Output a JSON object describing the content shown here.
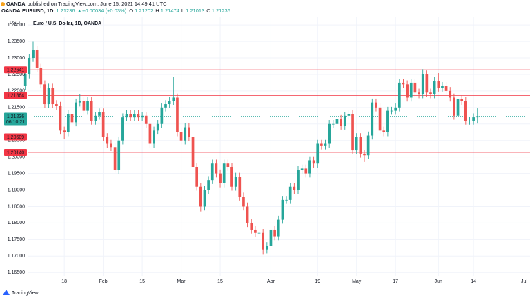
{
  "header": {
    "publisher": "OANDA",
    "published": "published on TradingView.com, June 15, 2021 14:49:41 UTC",
    "symbol": "OANDA:EURUSD, 1D",
    "last": "1.21236",
    "change": "▲+0.00034 (+0.03%)",
    "ohlc": [
      {
        "label": "O:",
        "value": "1.21202"
      },
      {
        "label": "H:",
        "value": "1.21474"
      },
      {
        "label": "L:",
        "value": "1.21013"
      },
      {
        "label": "C:",
        "value": "1.21236"
      }
    ]
  },
  "footer": "TradingView",
  "chart_data": {
    "type": "candlestick",
    "title": "Euro / U.S. Dollar, 1D, OANDA",
    "y_unit": "USD",
    "up_color": "#26a69a",
    "down_color": "#ef5350",
    "grid": true,
    "xlim": [
      -6.5,
      129.5
    ],
    "ylim": [
      1.164,
      1.2417
    ],
    "xticks": [
      {
        "value": 10,
        "label": "18"
      },
      {
        "value": 20,
        "label": "Feb"
      },
      {
        "value": 30,
        "label": "15"
      },
      {
        "value": 40,
        "label": "Mar"
      },
      {
        "value": 50,
        "label": "15"
      },
      {
        "value": 63,
        "label": "Apr"
      },
      {
        "value": 75,
        "label": "19"
      },
      {
        "value": 85,
        "label": "May"
      },
      {
        "value": 95,
        "label": "17"
      },
      {
        "value": 106,
        "label": "Jun"
      },
      {
        "value": 115,
        "label": "14"
      },
      {
        "value": 128,
        "label": "Jul"
      }
    ],
    "yticks": [
      {
        "value": 1.165,
        "label": "1.16500"
      },
      {
        "value": 1.17,
        "label": "1.17000"
      },
      {
        "value": 1.175,
        "label": "1.17500"
      },
      {
        "value": 1.18,
        "label": "1.18000"
      },
      {
        "value": 1.185,
        "label": "1.18500"
      },
      {
        "value": 1.19,
        "label": "1.19000"
      },
      {
        "value": 1.195,
        "label": "1.19500"
      },
      {
        "value": 1.2,
        "label": "1.20000"
      },
      {
        "value": 1.205,
        "label": "1.20500"
      },
      {
        "value": 1.21,
        "label": "1.21000"
      },
      {
        "value": 1.215,
        "label": "1.21500"
      },
      {
        "value": 1.22,
        "label": "1.22000"
      },
      {
        "value": 1.225,
        "label": "1.22500"
      },
      {
        "value": 1.23,
        "label": "1.23000"
      },
      {
        "value": 1.235,
        "label": "1.23500"
      },
      {
        "value": 1.24,
        "label": "1.24000"
      }
    ],
    "levels": [
      {
        "value": 1.22641,
        "label": "1.22641"
      },
      {
        "value": 1.21864,
        "label": "1.21864"
      },
      {
        "value": 1.20609,
        "label": "1.20609"
      },
      {
        "value": 1.2014,
        "label": "1.20140"
      }
    ],
    "level_color": "#f23645",
    "current": {
      "value": 1.21236,
      "label": "1.21236",
      "countdown": "06:10:21"
    },
    "open": [
      1.2215,
      1.225,
      1.23,
      1.2325,
      1.227,
      1.222,
      1.216,
      1.221,
      1.216,
      1.2155,
      1.208,
      1.2075,
      1.213,
      1.2105,
      1.2165,
      1.217,
      1.214,
      1.217,
      1.211,
      1.2125,
      1.2135,
      1.206,
      1.204,
      1.203,
      1.196,
      1.205,
      1.212,
      1.213,
      1.212,
      1.213,
      1.212,
      1.2125,
      1.21,
      1.204,
      1.208,
      1.21,
      1.215,
      1.216,
      1.217,
      1.218,
      1.2075,
      1.205,
      1.209,
      1.206,
      1.197,
      1.191,
      1.185,
      1.19,
      1.193,
      1.198,
      1.195,
      1.192,
      1.198,
      1.197,
      1.191,
      1.194,
      1.188,
      1.185,
      1.18,
      1.178,
      1.177,
      1.177,
      1.172,
      1.173,
      1.178,
      1.176,
      1.181,
      1.187,
      1.187,
      1.191,
      1.19,
      1.196,
      1.1965,
      1.195,
      1.199,
      1.198,
      1.204,
      1.2035,
      1.204,
      1.21,
      1.21,
      1.2115,
      1.2095,
      1.2125,
      1.213,
      1.202,
      1.206,
      1.201,
      1.2005,
      1.2065,
      1.2165,
      1.215,
      1.208,
      1.2075,
      1.214,
      1.214,
      1.215,
      1.2225,
      1.222,
      1.218,
      1.2225,
      1.2195,
      1.219,
      1.225,
      1.2195,
      1.219,
      1.223,
      1.221,
      1.2215,
      1.22,
      1.218,
      1.2125,
      1.2175,
      1.217,
      1.211,
      1.211,
      1.21202
    ],
    "high": [
      1.2262,
      1.2312,
      1.2349,
      1.2337,
      1.2282,
      1.2232,
      1.2222,
      1.2222,
      1.2172,
      1.2167,
      1.2092,
      1.2142,
      1.2142,
      1.2177,
      1.219,
      1.2182,
      1.2182,
      1.2182,
      1.2137,
      1.2147,
      1.2147,
      1.2072,
      1.2052,
      1.2042,
      1.2062,
      1.2132,
      1.2142,
      1.2142,
      1.2142,
      1.2142,
      1.2137,
      1.2137,
      1.2112,
      1.2092,
      1.2112,
      1.2162,
      1.2172,
      1.2182,
      1.2243,
      1.2192,
      1.2087,
      1.2102,
      1.2102,
      1.2072,
      1.1982,
      1.1922,
      1.1912,
      1.1942,
      1.1992,
      1.1992,
      1.1962,
      1.1992,
      1.1992,
      1.1982,
      1.1952,
      1.1952,
      1.1892,
      1.1862,
      1.1812,
      1.1792,
      1.1782,
      1.1782,
      1.1742,
      1.1792,
      1.1792,
      1.1822,
      1.1882,
      1.1882,
      1.1922,
      1.1922,
      1.1972,
      1.1977,
      1.1977,
      1.2002,
      1.2002,
      1.2052,
      1.2052,
      1.2052,
      1.2112,
      1.2112,
      1.2127,
      1.2127,
      1.2137,
      1.2142,
      1.2142,
      1.2072,
      1.2072,
      1.2022,
      1.2077,
      1.2177,
      1.2177,
      1.2162,
      1.2092,
      1.2152,
      1.2152,
      1.2162,
      1.2237,
      1.2237,
      1.2232,
      1.2237,
      1.2237,
      1.2207,
      1.2266,
      1.2262,
      1.2207,
      1.2242,
      1.2254,
      1.2227,
      1.2227,
      1.2212,
      1.2192,
      1.2187,
      1.2187,
      1.2182,
      1.2122,
      1.2132,
      1.21474
    ],
    "low": [
      1.2203,
      1.2238,
      1.2288,
      1.2258,
      1.2208,
      1.2148,
      1.2148,
      1.2148,
      1.2143,
      1.2068,
      1.2055,
      1.2063,
      1.2093,
      1.2093,
      1.2153,
      1.2128,
      1.2128,
      1.2098,
      1.2098,
      1.2113,
      1.2048,
      1.2028,
      1.2018,
      1.1952,
      1.1948,
      1.2038,
      1.2108,
      1.2108,
      1.2108,
      1.2108,
      1.2108,
      1.2088,
      1.2028,
      1.2028,
      1.2068,
      1.2088,
      1.2138,
      1.2148,
      1.2158,
      1.2063,
      1.2038,
      1.2038,
      1.2048,
      1.1958,
      1.1898,
      1.1835,
      1.1838,
      1.1888,
      1.1918,
      1.1938,
      1.1908,
      1.1908,
      1.1958,
      1.1898,
      1.1898,
      1.1868,
      1.1838,
      1.1788,
      1.1768,
      1.1758,
      1.1758,
      1.1704,
      1.1708,
      1.1718,
      1.1748,
      1.1748,
      1.1798,
      1.1858,
      1.1858,
      1.1888,
      1.1888,
      1.1948,
      1.1938,
      1.1938,
      1.1968,
      1.1968,
      1.2023,
      1.2023,
      1.2028,
      1.2088,
      1.2088,
      1.2083,
      1.2083,
      1.2113,
      1.2008,
      1.2008,
      1.1998,
      1.1985,
      1.1993,
      1.2053,
      1.2138,
      1.2068,
      1.2063,
      1.2063,
      1.2128,
      1.2128,
      1.2138,
      1.2208,
      1.2168,
      1.2168,
      1.2183,
      1.2178,
      1.2178,
      1.2183,
      1.2178,
      1.2178,
      1.2198,
      1.2198,
      1.2188,
      1.2168,
      1.2113,
      1.2113,
      1.2158,
      1.2098,
      1.2098,
      1.2098,
      1.21013
    ],
    "close": [
      1.225,
      1.23,
      1.2325,
      1.227,
      1.222,
      1.216,
      1.221,
      1.216,
      1.2155,
      1.208,
      1.2075,
      1.213,
      1.2105,
      1.2165,
      1.217,
      1.214,
      1.217,
      1.211,
      1.2125,
      1.2135,
      1.206,
      1.204,
      1.203,
      1.196,
      1.205,
      1.212,
      1.213,
      1.212,
      1.213,
      1.212,
      1.2125,
      1.21,
      1.204,
      1.208,
      1.21,
      1.215,
      1.216,
      1.217,
      1.218,
      1.2075,
      1.205,
      1.209,
      1.206,
      1.197,
      1.191,
      1.185,
      1.19,
      1.193,
      1.198,
      1.195,
      1.192,
      1.198,
      1.197,
      1.191,
      1.194,
      1.188,
      1.185,
      1.18,
      1.178,
      1.177,
      1.177,
      1.172,
      1.173,
      1.178,
      1.176,
      1.181,
      1.187,
      1.187,
      1.191,
      1.19,
      1.196,
      1.1965,
      1.195,
      1.199,
      1.198,
      1.204,
      1.2035,
      1.204,
      1.21,
      1.21,
      1.2115,
      1.2095,
      1.2125,
      1.213,
      1.202,
      1.206,
      1.201,
      1.2005,
      1.2065,
      1.2165,
      1.215,
      1.208,
      1.2075,
      1.214,
      1.214,
      1.215,
      1.2225,
      1.222,
      1.218,
      1.2225,
      1.2195,
      1.219,
      1.225,
      1.2195,
      1.219,
      1.223,
      1.221,
      1.2215,
      1.22,
      1.218,
      1.2125,
      1.2175,
      1.217,
      1.211,
      1.211,
      1.21202,
      1.21236
    ]
  }
}
